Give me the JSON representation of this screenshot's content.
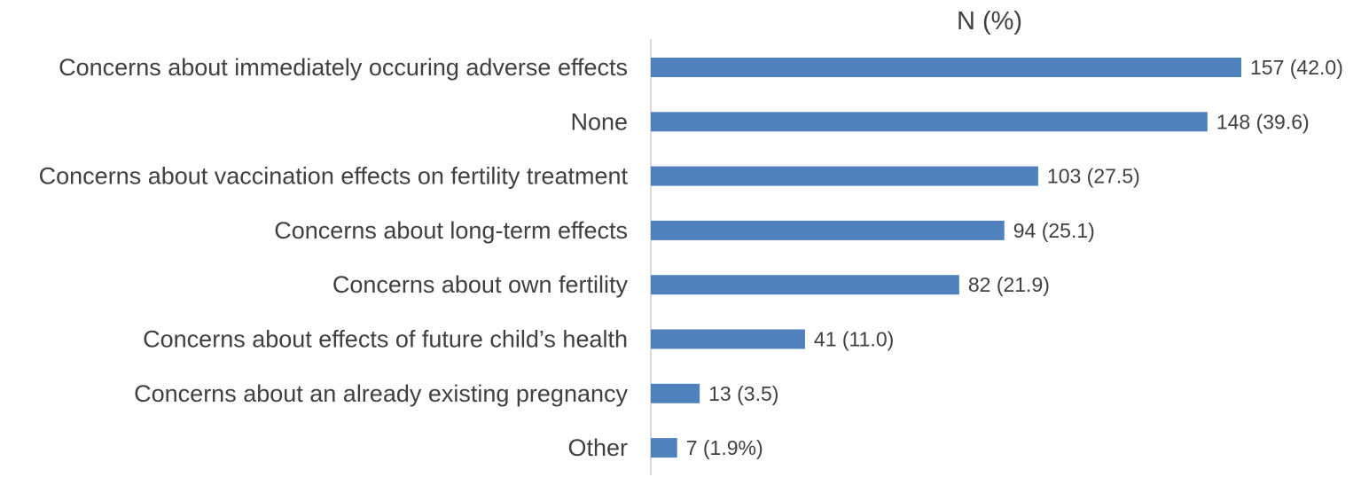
{
  "chart_data": {
    "type": "bar",
    "orientation": "horizontal",
    "title": "N (%)",
    "xlabel": "",
    "ylabel": "",
    "xlim": [
      0,
      157
    ],
    "grid": false,
    "legend": "none",
    "bar_color": "#4f81bd",
    "categories": [
      "Concerns about immediately occuring adverse effects",
      "None",
      "Concerns about vaccination effects on fertility treatment",
      "Concerns about long-term effects",
      "Concerns about own fertility",
      "Concerns about effects of future child’s health",
      "Concerns about an already existing pregnancy",
      "Other"
    ],
    "values": [
      157,
      148,
      103,
      94,
      82,
      41,
      13,
      7
    ],
    "value_labels": [
      "157 (42.0)",
      "148 (39.6)",
      "103 (27.5)",
      "94 (25.1)",
      "82 (21.9)",
      "41 (11.0)",
      "13 (3.5)",
      "7 (1.9%)"
    ]
  }
}
